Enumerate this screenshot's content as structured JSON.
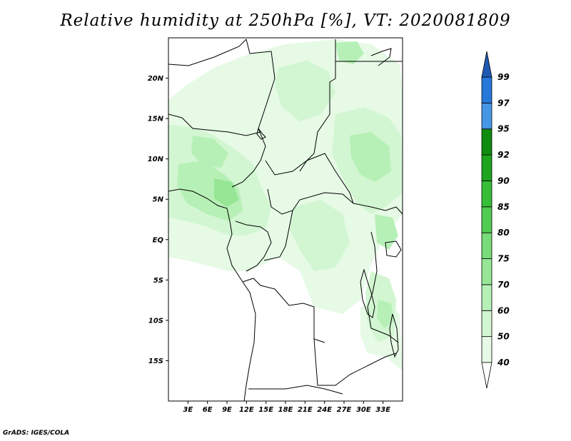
{
  "title": "Relative humidity at 250hPa [%], VT: 2020081809",
  "credit": "GrADS: IGES/COLA",
  "map": {
    "lon_range": [
      0,
      36
    ],
    "lat_range": [
      -20,
      25
    ],
    "lat_ticks": [
      {
        "value": 20,
        "label": "20N"
      },
      {
        "value": 15,
        "label": "15N"
      },
      {
        "value": 10,
        "label": "10N"
      },
      {
        "value": 5,
        "label": "5N"
      },
      {
        "value": 0,
        "label": "EQ"
      },
      {
        "value": -5,
        "label": "5S"
      },
      {
        "value": -10,
        "label": "10S"
      },
      {
        "value": -15,
        "label": "15S"
      }
    ],
    "lon_ticks": [
      {
        "value": 3,
        "label": "3E"
      },
      {
        "value": 6,
        "label": "6E"
      },
      {
        "value": 9,
        "label": "9E"
      },
      {
        "value": 12,
        "label": "12E"
      },
      {
        "value": 15,
        "label": "15E"
      },
      {
        "value": 18,
        "label": "18E"
      },
      {
        "value": 21,
        "label": "21E"
      },
      {
        "value": 24,
        "label": "24E"
      },
      {
        "value": 27,
        "label": "27E"
      },
      {
        "value": 30,
        "label": "30E"
      },
      {
        "value": 33,
        "label": "33E"
      }
    ]
  },
  "colorbar": {
    "levels": [
      {
        "label": "40",
        "color": "#e6fae6"
      },
      {
        "label": "50",
        "color": "#d2f6d2"
      },
      {
        "label": "60",
        "color": "#b6f0b6"
      },
      {
        "label": "70",
        "color": "#96e696"
      },
      {
        "label": "75",
        "color": "#78dc78"
      },
      {
        "label": "80",
        "color": "#50cd50"
      },
      {
        "label": "85",
        "color": "#37be37"
      },
      {
        "label": "90",
        "color": "#1ea51e"
      },
      {
        "label": "92",
        "color": "#0f8c0f"
      },
      {
        "label": "95",
        "color": "#4696e6"
      },
      {
        "label": "97",
        "color": "#2878dc"
      },
      {
        "label": "99",
        "color": "#1e5ab4"
      }
    ],
    "bottom_color": "#ffffff",
    "top_color": "#1e5ab4"
  }
}
